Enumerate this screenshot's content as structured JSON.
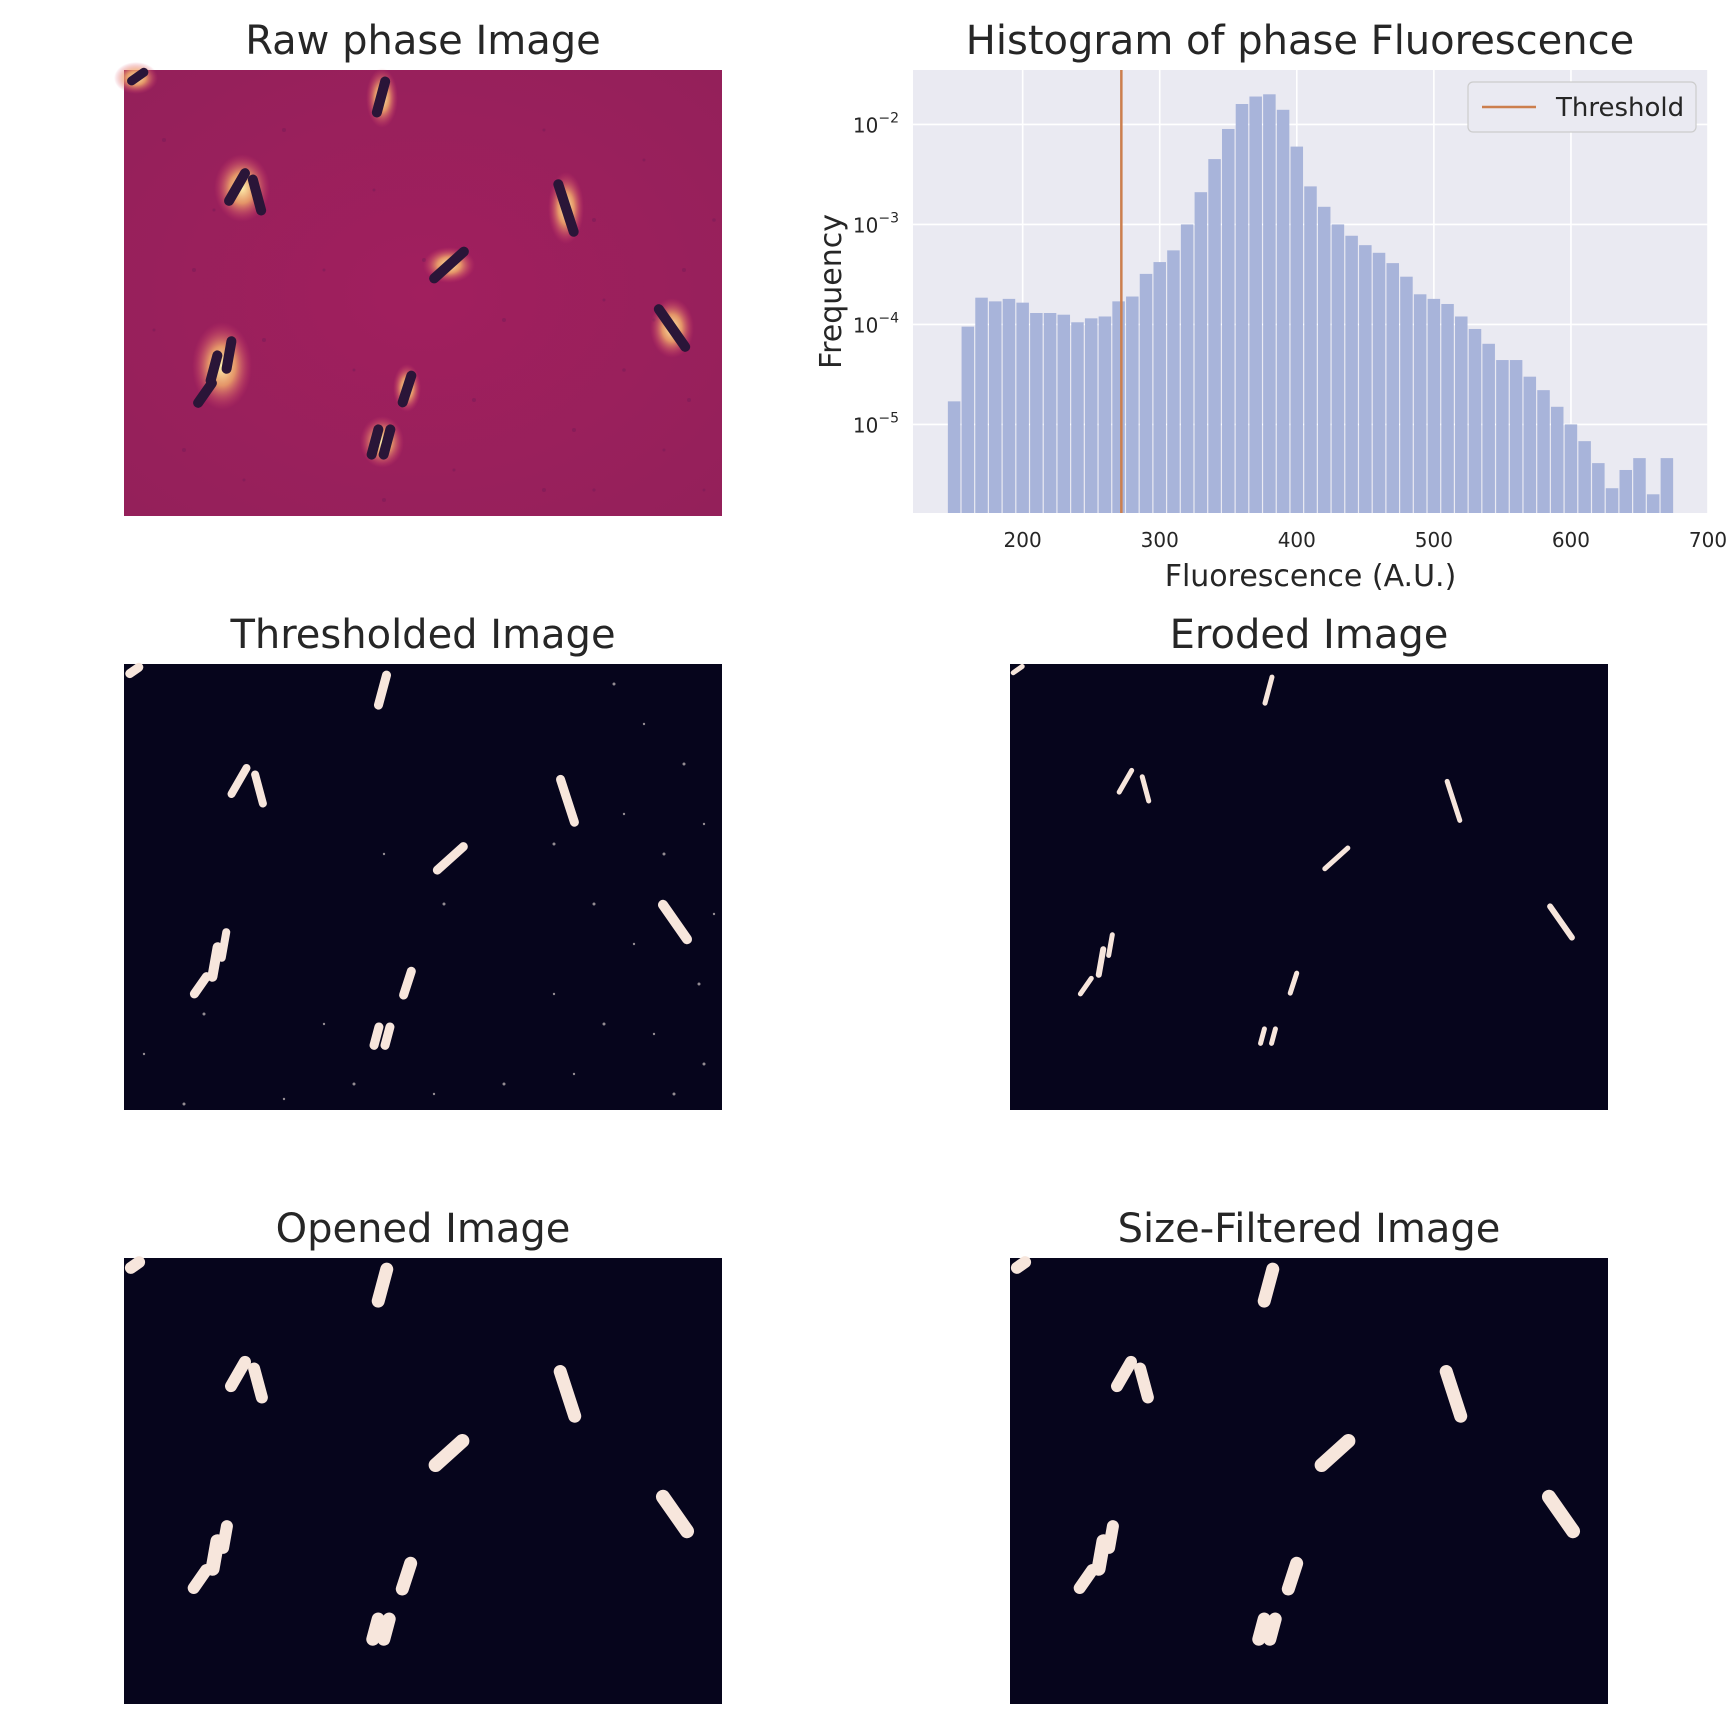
{
  "panels": {
    "raw": {
      "title": "Raw phase Image"
    },
    "histogram": {
      "title": "Histogram of phase Fluorescence"
    },
    "thresholded": {
      "title": "Thresholded Image"
    },
    "eroded": {
      "title": "Eroded Image"
    },
    "opened": {
      "title": "Opened Image"
    },
    "size_filtered": {
      "title": "Size-Filtered Image"
    }
  },
  "colors": {
    "bar": "#a8b4da",
    "threshold_line": "#cc7f4e",
    "plot_bg": "#eaeaf2",
    "mask_bg": "#06051c",
    "mask_fg": "#f7e6dc",
    "raw_bg": "#9b1e5c",
    "raw_cell": "#2a1538",
    "raw_halo": "#fbe08a"
  },
  "chart_data": {
    "type": "bar",
    "title": "Histogram of phase Fluorescence",
    "xlabel": "Fluorescence (A.U.)",
    "ylabel": "Frequency",
    "y_scale": "log",
    "xlim": [
      120,
      700
    ],
    "ylim": [
      1.3e-06,
      0.035
    ],
    "x_ticks": [
      200,
      300,
      400,
      500,
      600,
      700
    ],
    "y_ticks": [
      1e-05,
      0.0001,
      0.001,
      0.01
    ],
    "y_tick_labels": [
      {
        "base": "10",
        "exp": "−5"
      },
      {
        "base": "10",
        "exp": "−4"
      },
      {
        "base": "10",
        "exp": "−3"
      },
      {
        "base": "10",
        "exp": "−2"
      }
    ],
    "grid": true,
    "legend": {
      "placement": "top-right",
      "entries": [
        "Threshold"
      ]
    },
    "threshold": 272,
    "bin_width": 10,
    "bin_starts": [
      145,
      155,
      165,
      175,
      185,
      195,
      205,
      215,
      225,
      235,
      245,
      255,
      265,
      275,
      285,
      295,
      305,
      315,
      325,
      335,
      345,
      355,
      365,
      375,
      385,
      395,
      405,
      415,
      425,
      435,
      445,
      455,
      465,
      475,
      485,
      495,
      505,
      515,
      525,
      535,
      545,
      555,
      565,
      575,
      585,
      595,
      605,
      615,
      625,
      635,
      645,
      655,
      665
    ],
    "values": [
      1.7e-05,
      9.5e-05,
      0.000185,
      0.00017,
      0.00018,
      0.000165,
      0.00013,
      0.00013,
      0.000125,
      0.000105,
      0.000115,
      0.00012,
      0.00017,
      0.00019,
      0.00032,
      0.00042,
      0.00055,
      0.001,
      0.0021,
      0.0045,
      0.009,
      0.016,
      0.019,
      0.02,
      0.014,
      0.006,
      0.0024,
      0.0015,
      0.001,
      0.00077,
      0.00062,
      0.00052,
      0.00041,
      0.0003,
      0.0002,
      0.00018,
      0.00016,
      0.00012,
      9e-05,
      6.4e-05,
      4.4e-05,
      4.4e-05,
      3e-05,
      2.2e-05,
      1.5e-05,
      1e-05,
      6.8e-06,
      4.1e-06,
      2.3e-06,
      3.5e-06,
      4.6e-06,
      2e-06,
      4.6e-06
    ]
  }
}
